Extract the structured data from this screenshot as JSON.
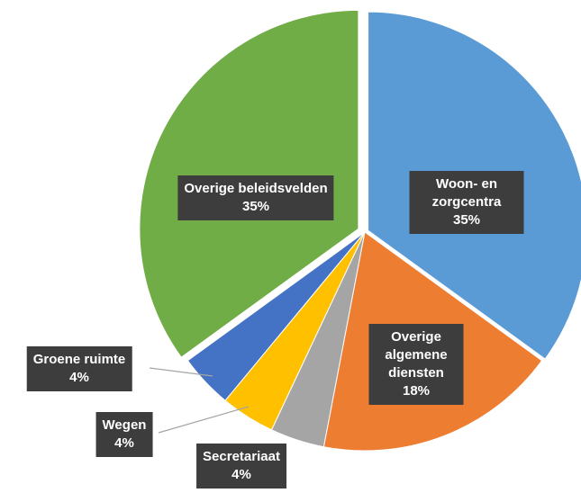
{
  "chart_data": {
    "type": "pie",
    "categories": [
      "Woon- en zorgcentra",
      "Overige algemene diensten",
      "Secretariaat",
      "Wegen",
      "Groene ruimte",
      "Overige beleidsvelden"
    ],
    "values": [
      35,
      18,
      4,
      4,
      4,
      35
    ],
    "value_labels": [
      "35%",
      "18%",
      "4%",
      "4%",
      "4%",
      "35%"
    ],
    "colors": [
      "#5b9bd5",
      "#ed7d31",
      "#a5a5a5",
      "#ffc000",
      "#4472c4",
      "#70ad47"
    ]
  }
}
